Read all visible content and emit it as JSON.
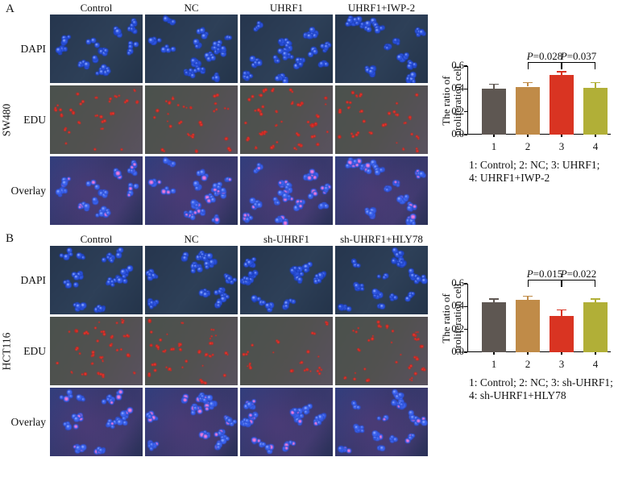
{
  "figure": {
    "panels": [
      {
        "id": "A",
        "cell_line": "SW480",
        "columns": [
          "Control",
          "NC",
          "UHRF1",
          "UHRF1+IWP-2"
        ],
        "rows": [
          "DAPI",
          "EDU",
          "Overlay"
        ]
      },
      {
        "id": "B",
        "cell_line": "HCT116",
        "columns": [
          "Control",
          "NC",
          "sh-UHRF1",
          "sh-UHRF1+HLY78"
        ],
        "rows": [
          "DAPI",
          "EDU",
          "Overlay"
        ]
      }
    ]
  },
  "chart_data": [
    {
      "type": "bar",
      "panel": "A",
      "categories": [
        "1",
        "2",
        "3",
        "4"
      ],
      "values": [
        0.4,
        0.42,
        0.52,
        0.41
      ],
      "errors": [
        0.04,
        0.035,
        0.03,
        0.045
      ],
      "bar_colors": [
        "#5e5752",
        "#c08b48",
        "#d93422",
        "#b1af37"
      ],
      "ylabel": "The ratio of proliferation cell",
      "ylabel_lines": [
        "The ratio of",
        "proliferation cell"
      ],
      "ylim": [
        0,
        0.6
      ],
      "yticks": [
        "0.0",
        "0.2",
        "0.4",
        "0.6"
      ],
      "annotations": [
        {
          "label": "P=0.028",
          "from": 1,
          "to": 2
        },
        {
          "label": "P=0.037",
          "from": 2,
          "to": 3
        }
      ],
      "legend_lines": [
        "1: Control; 2: NC; 3: UHRF1;",
        "4: UHRF1+IWP-2"
      ]
    },
    {
      "type": "bar",
      "panel": "B",
      "categories": [
        "1",
        "2",
        "3",
        "4"
      ],
      "values": [
        0.44,
        0.46,
        0.32,
        0.44
      ],
      "errors": [
        0.025,
        0.03,
        0.05,
        0.025
      ],
      "bar_colors": [
        "#5e5752",
        "#c08b48",
        "#d93422",
        "#b1af37"
      ],
      "ylabel": "The ratio of proliferation cell",
      "ylabel_lines": [
        "The ratio of",
        "proliferation cell"
      ],
      "ylim": [
        0,
        0.6
      ],
      "yticks": [
        "0.0",
        "0.2",
        "0.4",
        "0.6"
      ],
      "annotations": [
        {
          "label": "P=0.015",
          "from": 1,
          "to": 2
        },
        {
          "label": "P=0.022",
          "from": 2,
          "to": 3
        }
      ],
      "legend_lines": [
        "1: Control; 2: NC; 3: sh-UHRF1;",
        "4: sh-UHRF1+HLY78"
      ]
    }
  ]
}
